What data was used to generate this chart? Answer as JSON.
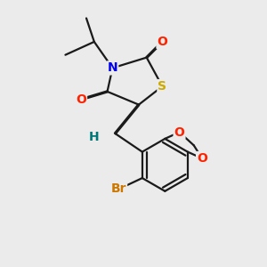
{
  "bg_color": "#ebebeb",
  "bond_color": "#1a1a1a",
  "atom_colors": {
    "O": "#ff2200",
    "N": "#0000ee",
    "S": "#ccaa00",
    "Br": "#cc7700",
    "H": "#007777",
    "C": "#1a1a1a"
  },
  "lw": 1.6,
  "fs": 10
}
